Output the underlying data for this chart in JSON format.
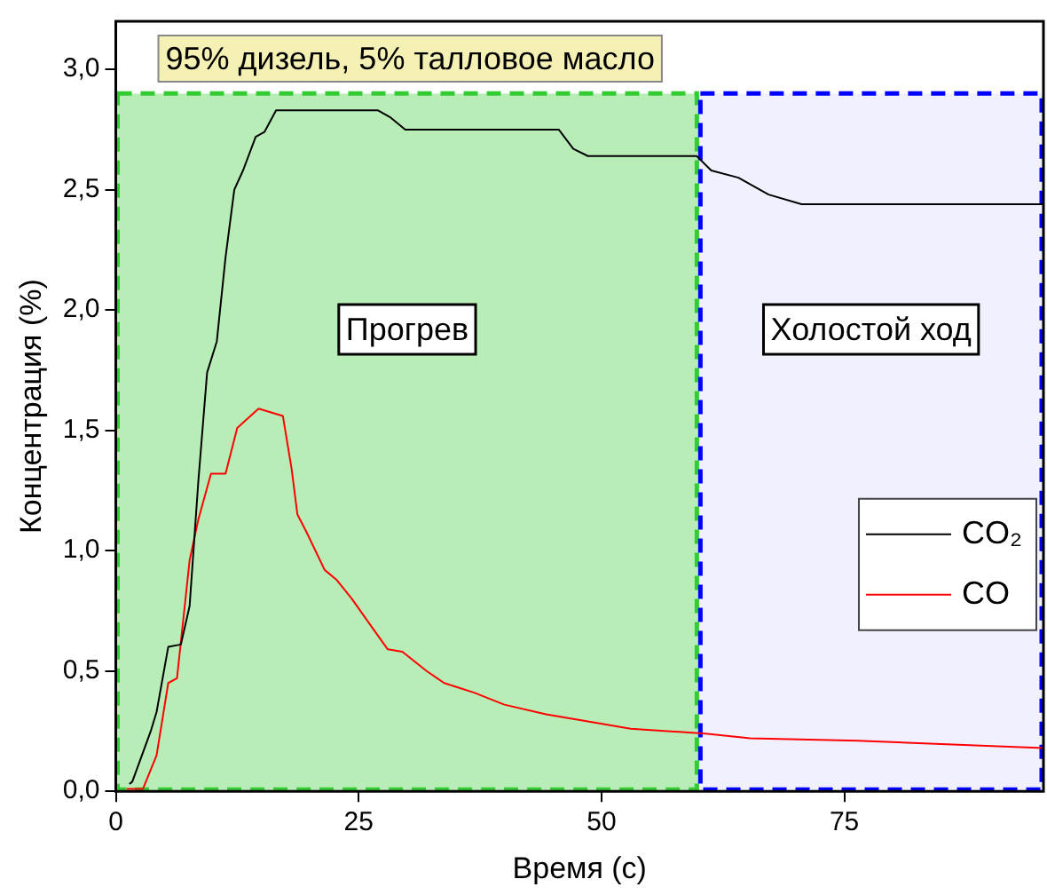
{
  "chart_data": {
    "type": "line",
    "title": "95% дизель, 5% талловое масло",
    "xlabel": "Время (с)",
    "ylabel": "Концентрация (%)",
    "xlim": [
      0,
      95.5
    ],
    "xticks": [
      0,
      25,
      50,
      75
    ],
    "ylim": [
      0,
      3.2
    ],
    "yticks": [
      {
        "value": 0,
        "label": "0,0"
      },
      {
        "value": 0.5,
        "label": "0,5"
      },
      {
        "value": 1,
        "label": "1,0"
      },
      {
        "value": 1.5,
        "label": "1,5"
      },
      {
        "value": 2,
        "label": "2,0"
      },
      {
        "value": 2.5,
        "label": "2,5"
      },
      {
        "value": 3,
        "label": "3,0"
      }
    ],
    "grid": false,
    "legend": "right",
    "marker": "none",
    "line_style": "solid",
    "bands": [
      {
        "axis": "x",
        "from": 0,
        "to": 60,
        "label": "Прогрев",
        "color": "#33cc33"
      },
      {
        "axis": "x",
        "from": 60,
        "to": 95.5,
        "label": "Холостой ход",
        "color": "#0000ff"
      }
    ],
    "series": [
      {
        "name": "CO₂",
        "color": "#000000",
        "x": [
          1.4,
          1.7,
          3.6,
          4.2,
          5.4,
          6.7,
          7.6,
          8.5,
          9.4,
          10.4,
          11.3,
          12.2,
          13.1,
          14.4,
          15.3,
          16.5,
          17.8,
          27.0,
          28.3,
          29.8,
          45.6,
          47.1,
          48.6,
          59.8,
          61.3,
          64.1,
          67.2,
          70.6,
          95.5
        ],
        "values": [
          0.03,
          0.04,
          0.25,
          0.33,
          0.6,
          0.61,
          0.77,
          1.29,
          1.74,
          1.87,
          2.22,
          2.5,
          2.58,
          2.72,
          2.74,
          2.83,
          2.83,
          2.83,
          2.8,
          2.75,
          2.75,
          2.67,
          2.64,
          2.64,
          2.58,
          2.55,
          2.48,
          2.44,
          2.44
        ]
      },
      {
        "name": "CO",
        "color": "#ff0000",
        "x": [
          1.1,
          2.8,
          4.2,
          5.4,
          6.3,
          7.6,
          8.5,
          9.8,
          11.3,
          12.5,
          14.7,
          17.2,
          18.1,
          18.7,
          19.6,
          21.5,
          22.7,
          24.3,
          26.4,
          28.0,
          29.5,
          32.0,
          33.8,
          36.9,
          40.0,
          44.3,
          48.6,
          53.0,
          60.7,
          65.3,
          76.4,
          95.5
        ],
        "values": [
          0.01,
          0.01,
          0.15,
          0.45,
          0.47,
          0.96,
          1.13,
          1.32,
          1.32,
          1.51,
          1.59,
          1.56,
          1.34,
          1.15,
          1.08,
          0.92,
          0.88,
          0.8,
          0.68,
          0.59,
          0.58,
          0.5,
          0.45,
          0.41,
          0.36,
          0.32,
          0.29,
          0.26,
          0.24,
          0.22,
          0.21,
          0.18
        ]
      }
    ]
  }
}
